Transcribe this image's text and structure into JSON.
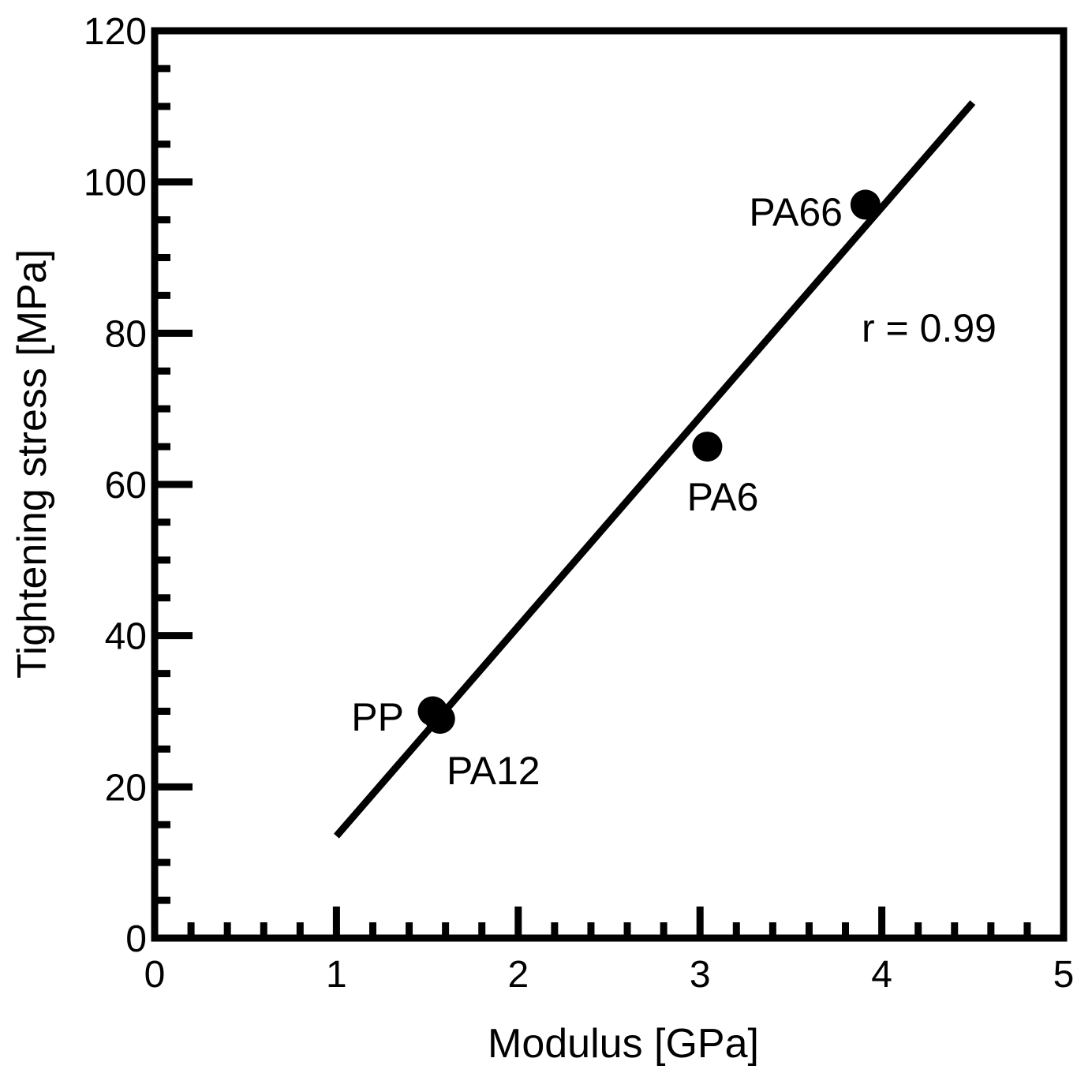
{
  "chart_data": {
    "type": "scatter",
    "title": "",
    "xlabel": "Modulus [GPa]",
    "ylabel": "Tightening stress [MPa]",
    "xlim": [
      0,
      5
    ],
    "ylim": [
      0,
      120
    ],
    "x_ticks": [
      "0",
      "1",
      "2",
      "3",
      "4",
      "5"
    ],
    "y_ticks": [
      "0",
      "20",
      "40",
      "60",
      "80",
      "100",
      "120"
    ],
    "x_minor_step": 0.2,
    "y_minor_step": 5,
    "grid": false,
    "legend": "none",
    "points": [
      {
        "label": "PP",
        "x": 1.53,
        "y": 30
      },
      {
        "label": "PA12",
        "x": 1.57,
        "y": 29
      },
      {
        "label": "PA6",
        "x": 3.04,
        "y": 65
      },
      {
        "label": "PA66",
        "x": 3.91,
        "y": 97
      }
    ],
    "fit_line": {
      "x": [
        1.0,
        4.5
      ],
      "y": [
        13.5,
        110.5
      ]
    },
    "annotation": "r = 0.99",
    "colors": {
      "marks": "#000000",
      "background": "#ffffff"
    }
  }
}
